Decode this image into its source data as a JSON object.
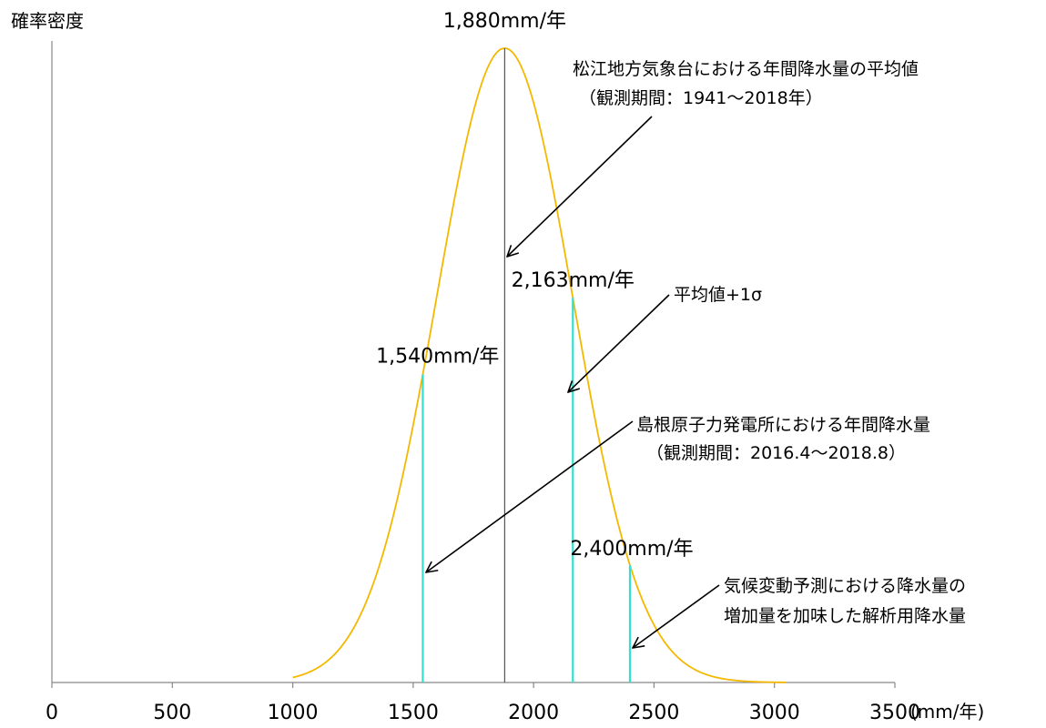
{
  "chart_data": {
    "type": "line",
    "ylabel": "確率密度",
    "xunit": "(mm/年)",
    "xlim": [
      0,
      3500
    ],
    "xticks": [
      0,
      500,
      1000,
      1500,
      2000,
      2500,
      3000,
      3500
    ],
    "xtick_labels": [
      "0",
      "500",
      "1000",
      "1500",
      "2000",
      "2500",
      "3000",
      "3500"
    ],
    "grid": false,
    "series": [
      {
        "mean": 1880,
        "sd": 283,
        "x_range": [
          1000,
          3050
        ],
        "color": "#f5b800"
      }
    ],
    "markers": [
      {
        "x": 1880,
        "label": "1,880mm/年",
        "color": "#555555"
      },
      {
        "x": 1540,
        "label": "1,540mm/年",
        "color": "#33e0d0"
      },
      {
        "x": 2163,
        "label": "2,163mm/年",
        "color": "#33e0d0"
      },
      {
        "x": 2400,
        "label": "2,400mm/年",
        "color": "#33e0d0"
      }
    ],
    "annotations": [
      {
        "lines": [
          "松江地方気象台における年間降水量の平均値",
          "（観測期間：1941～2018年）"
        ],
        "target_x": 1880
      },
      {
        "lines": [
          "平均値+1σ"
        ],
        "target_x": 2163
      },
      {
        "lines": [
          "島根原子力発電所における年間降水量",
          "（観測期間：2016.4～2018.8）"
        ],
        "target_x": 1540
      },
      {
        "lines": [
          "気候変動予測における降水量の",
          "増加量を加味した解析用降水量"
        ],
        "target_x": 2400
      }
    ]
  }
}
